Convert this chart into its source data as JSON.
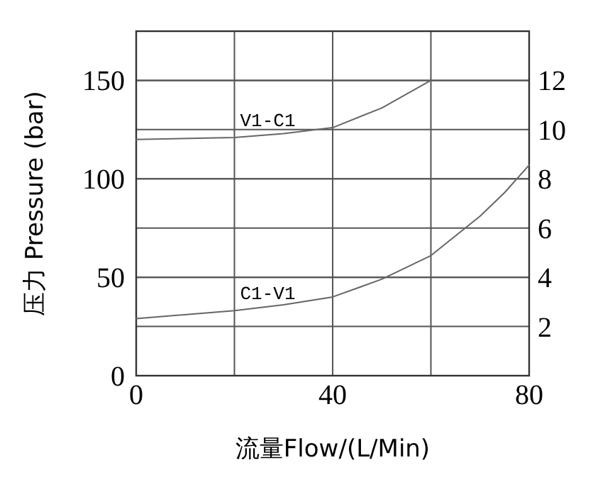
{
  "chart_data": {
    "type": "line",
    "xlabel": "流量Flow/(L/Min)",
    "ylabel": "压力 Pressure (bar)",
    "xlim": [
      0,
      80
    ],
    "xticks": [
      0,
      {
        "value": 20,
        "label": null
      },
      40,
      {
        "value": 60,
        "label": null
      },
      80
    ],
    "ylim": [
      0,
      175
    ],
    "yticks": [
      0,
      50,
      100,
      150
    ],
    "y2lim": [
      0,
      14
    ],
    "y2ticks": [
      2,
      4,
      6,
      8,
      10,
      12
    ],
    "grid": true,
    "series": [
      {
        "name": "V1-C1",
        "color": "#666666",
        "x": [
          0,
          20,
          30,
          40,
          50,
          60
        ],
        "values": [
          120,
          121,
          123,
          126,
          136,
          150
        ]
      },
      {
        "name": "C1-V1",
        "color": "#666666",
        "x": [
          0,
          20,
          30,
          40,
          50,
          60,
          70,
          75,
          80
        ],
        "values": [
          29,
          33,
          36,
          40,
          49,
          61,
          81,
          93,
          107
        ]
      }
    ]
  }
}
